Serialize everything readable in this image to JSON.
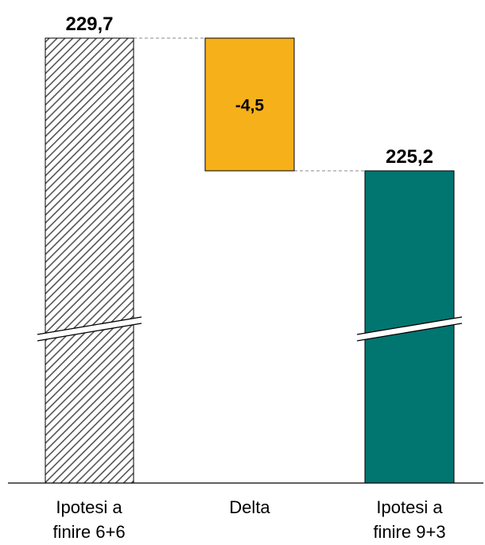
{
  "chart_data": {
    "type": "bar",
    "subtype": "waterfall",
    "categories": [
      [
        "Ipotesi a",
        "finire 6+6"
      ],
      [
        "Delta"
      ],
      [
        "Ipotesi a",
        "finire 9+3"
      ]
    ],
    "values": [
      229.7,
      -4.5,
      225.2
    ],
    "value_labels": [
      "229,7",
      "-4,5",
      "225,2"
    ],
    "axis_break": true,
    "grid": false,
    "legend": "none",
    "colors": {
      "start_bar_hatch": "#555555",
      "delta_bar": "#F6B01A",
      "end_bar": "#017570",
      "connector": "#888888"
    }
  }
}
